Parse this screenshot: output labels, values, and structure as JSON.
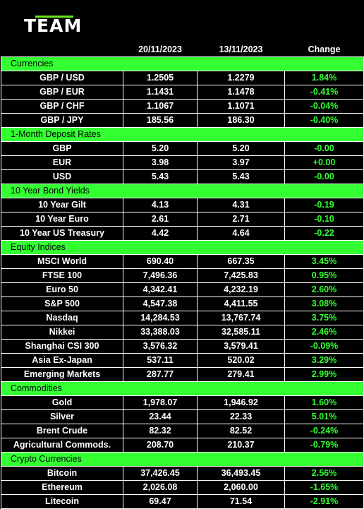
{
  "brand": {
    "logo_text": "TEAM",
    "accent": "#33ff33"
  },
  "headers": {
    "date1": "20/11/2023",
    "date2": "13/11/2023",
    "change": "Change"
  },
  "sections": [
    {
      "title": "Currencies",
      "rows": [
        {
          "label": "GBP / USD",
          "v1": "1.2505",
          "v2": "1.2279",
          "change": "1.84%"
        },
        {
          "label": "GBP / EUR",
          "v1": "1.1431",
          "v2": "1.1478",
          "change": "-0.41%"
        },
        {
          "label": "GBP / CHF",
          "v1": "1.1067",
          "v2": "1.1071",
          "change": "-0.04%"
        },
        {
          "label": "GBP / JPY",
          "v1": "185.56",
          "v2": "186.30",
          "change": "-0.40%"
        }
      ]
    },
    {
      "title": "1-Month Deposit Rates",
      "rows": [
        {
          "label": "GBP",
          "v1": "5.20",
          "v2": "5.20",
          "change": "-0.00"
        },
        {
          "label": "EUR",
          "v1": "3.98",
          "v2": "3.97",
          "change": "+0.00"
        },
        {
          "label": "USD",
          "v1": "5.43",
          "v2": "5.43",
          "change": "-0.00"
        }
      ]
    },
    {
      "title": "10 Year Bond Yields",
      "rows": [
        {
          "label": "10 Year Gilt",
          "v1": "4.13",
          "v2": "4.31",
          "change": "-0.19"
        },
        {
          "label": "10 Year Euro",
          "v1": "2.61",
          "v2": "2.71",
          "change": "-0.10"
        },
        {
          "label": "10 Year US Treasury",
          "v1": "4.42",
          "v2": "4.64",
          "change": "-0.22"
        }
      ]
    },
    {
      "title": "Equity Indices",
      "rows": [
        {
          "label": "MSCI World",
          "v1": "690.40",
          "v2": "667.35",
          "change": "3.45%"
        },
        {
          "label": "FTSE 100",
          "v1": "7,496.36",
          "v2": "7,425.83",
          "change": "0.95%"
        },
        {
          "label": "Euro 50",
          "v1": "4,342.41",
          "v2": "4,232.19",
          "change": "2.60%"
        },
        {
          "label": "S&P 500",
          "v1": "4,547.38",
          "v2": "4,411.55",
          "change": "3.08%"
        },
        {
          "label": "Nasdaq",
          "v1": "14,284.53",
          "v2": "13,767.74",
          "change": "3.75%"
        },
        {
          "label": "Nikkei",
          "v1": "33,388.03",
          "v2": "32,585.11",
          "change": "2.46%"
        },
        {
          "label": "Shanghai CSI 300",
          "v1": "3,576.32",
          "v2": "3,579.41",
          "change": "-0.09%"
        },
        {
          "label": "Asia Ex-Japan",
          "v1": "537.11",
          "v2": "520.02",
          "change": "3.29%"
        },
        {
          "label": "Emerging Markets",
          "v1": "287.77",
          "v2": "279.41",
          "change": "2.99%"
        }
      ]
    },
    {
      "title": "Commodities",
      "rows": [
        {
          "label": "Gold",
          "v1": "1,978.07",
          "v2": "1,946.92",
          "change": "1.60%"
        },
        {
          "label": "Silver",
          "v1": "23.44",
          "v2": "22.33",
          "change": "5.01%"
        },
        {
          "label": "Brent Crude",
          "v1": "82.32",
          "v2": "82.52",
          "change": "-0.24%"
        },
        {
          "label": "Agricultural Commods.",
          "v1": "208.70",
          "v2": "210.37",
          "change": "-0.79%"
        }
      ]
    },
    {
      "title": "Crypto Currencies",
      "rows": [
        {
          "label": "Bitcoin",
          "v1": "37,426.45",
          "v2": "36,493.45",
          "change": "2.56%"
        },
        {
          "label": "Ethereum",
          "v1": "2,026.08",
          "v2": "2,060.00",
          "change": "-1.65%"
        },
        {
          "label": "Litecoin",
          "v1": "69.47",
          "v2": "71.54",
          "change": "-2.91%"
        }
      ]
    }
  ]
}
